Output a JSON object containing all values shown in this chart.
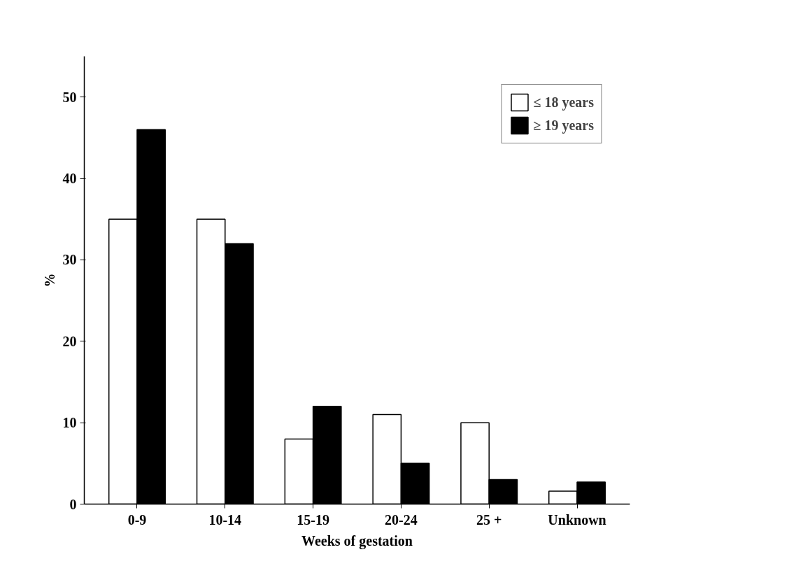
{
  "chart_data": {
    "type": "bar",
    "xlabel": "Weeks of gestation",
    "ylabel": "%",
    "categories": [
      "0-9",
      "10-14",
      "15-19",
      "20-24",
      "25 +",
      "Unknown"
    ],
    "series": [
      {
        "name": "≤ 18 years",
        "color": "#ffffff",
        "values": [
          35,
          35,
          8,
          11,
          10,
          1.6
        ]
      },
      {
        "name": "≥ 19 years",
        "color": "#000000",
        "values": [
          46,
          32,
          12,
          5,
          3,
          2.7
        ]
      }
    ],
    "ylim": [
      0,
      55
    ],
    "yticks": [
      0,
      10,
      20,
      30,
      40,
      50
    ],
    "grid": false,
    "legend": "top right"
  }
}
